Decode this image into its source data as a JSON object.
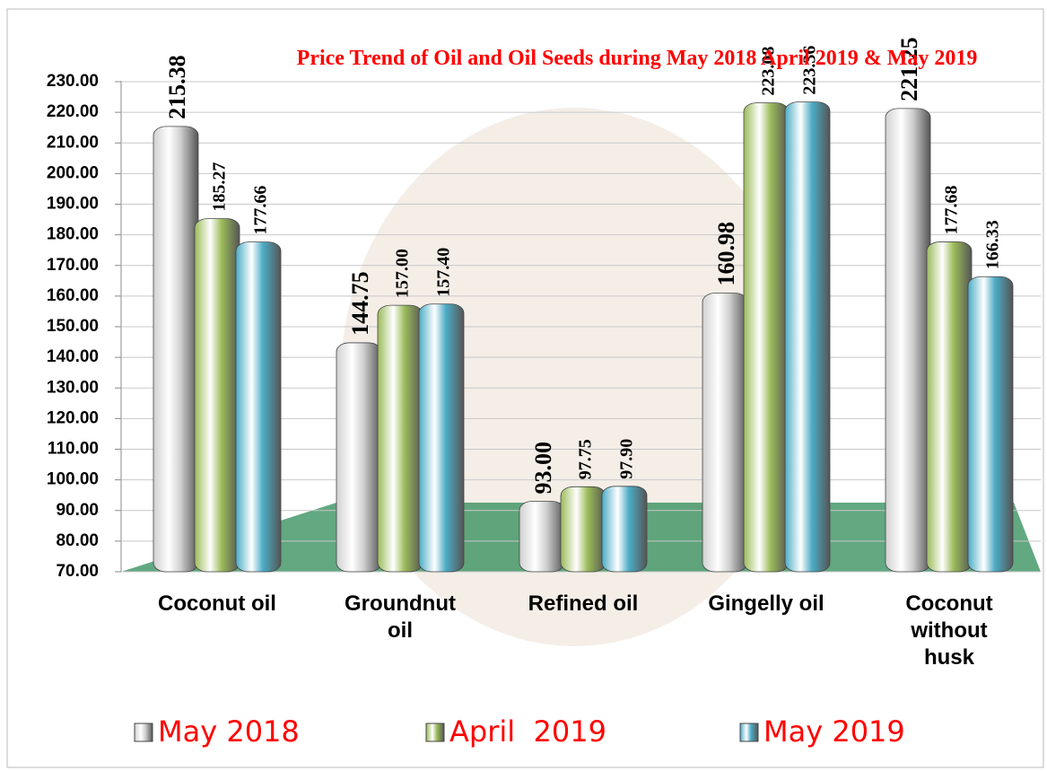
{
  "chart_data": {
    "type": "bar",
    "title": "Price Trend of Oil and Oil Seeds during  May 2018  April 2019 &  May 2019",
    "categories": [
      "Coconut oil",
      "Groundnut oil",
      "Refined oil",
      "Gingelly oil",
      "Coconut without husk"
    ],
    "series": [
      {
        "name": "May 2018",
        "color": "#d0d0d0",
        "values": [
          215.38,
          144.75,
          93.0,
          160.98,
          221.25
        ],
        "value_labels": [
          "215.38",
          "144.75",
          "93.00",
          "160.98",
          "221.25"
        ]
      },
      {
        "name": "April  2019",
        "color": "#9bbb59",
        "values": [
          185.27,
          157.0,
          97.75,
          223.08,
          177.68
        ],
        "value_labels": [
          "185.27",
          "157.00",
          "97.75",
          "223.08",
          "177.68"
        ]
      },
      {
        "name": "May 2019",
        "color": "#4bacc6",
        "values": [
          177.66,
          157.4,
          97.9,
          223.36,
          166.33
        ],
        "value_labels": [
          "177.66",
          "157.40",
          "97.90",
          "223.36",
          "166.33"
        ]
      }
    ],
    "ylim": [
      70,
      230
    ],
    "yticks": [
      {
        "value": 70,
        "label": "70.00"
      },
      {
        "value": 80,
        "label": "80.00"
      },
      {
        "value": 90,
        "label": "90.00"
      },
      {
        "value": 100,
        "label": "100.00"
      },
      {
        "value": 110,
        "label": "110.00"
      },
      {
        "value": 120,
        "label": "120.00"
      },
      {
        "value": 130,
        "label": "130.00"
      },
      {
        "value": 140,
        "label": "140.00"
      },
      {
        "value": 150,
        "label": "150.00"
      },
      {
        "value": 160,
        "label": "160.00"
      },
      {
        "value": 170,
        "label": "170.00"
      },
      {
        "value": 180,
        "label": "180.00"
      },
      {
        "value": 190,
        "label": "190.00"
      },
      {
        "value": 200,
        "label": "200.00"
      },
      {
        "value": 210,
        "label": "210.00"
      },
      {
        "value": 220,
        "label": "220.00"
      },
      {
        "value": 230,
        "label": "230.00"
      }
    ],
    "grid": true
  }
}
